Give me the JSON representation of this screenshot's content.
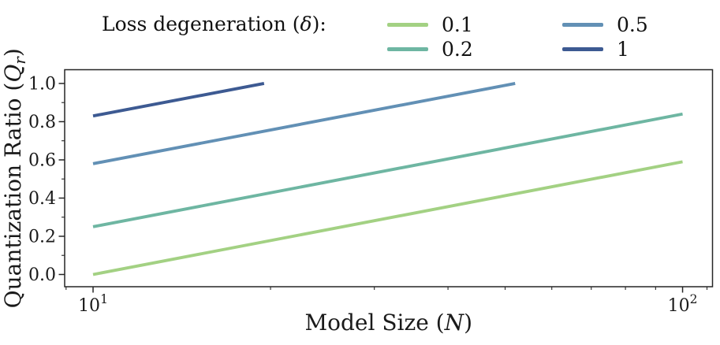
{
  "legend": {
    "title": {
      "pre": "Loss degeneration (",
      "math": "δ",
      "post": "):"
    },
    "entries": [
      {
        "label": "0.1",
        "color": "#a3d183"
      },
      {
        "label": "0.2",
        "color": "#6eb6a2"
      },
      {
        "label": "0.5",
        "color": "#6290b5"
      },
      {
        "label": "1",
        "color": "#3d5a92"
      }
    ],
    "position": "top",
    "columns": 2
  },
  "chart_data": {
    "type": "line",
    "title": "",
    "x_scale": "log",
    "y_scale": "linear",
    "grid": false,
    "frame": "box",
    "frame_color": "#262626",
    "xlabel": {
      "pre": "Model Size (",
      "math": "N",
      "post": ")"
    },
    "ylabel": {
      "pre": "Quantization Ratio (",
      "math": "Q",
      "sub": "r",
      "post": ")"
    },
    "xlim": [
      8.95,
      112.4
    ],
    "ylim": [
      -0.064,
      1.072
    ],
    "x_major_ticks": [
      {
        "value": 10,
        "base": "10",
        "exp": "1"
      },
      {
        "value": 100,
        "base": "10",
        "exp": "2"
      }
    ],
    "x_minor_ticks": [
      9,
      20,
      30,
      40,
      50,
      60,
      70,
      80,
      90,
      110
    ],
    "y_major_ticks": [
      {
        "value": 0.0,
        "label": "0.0"
      },
      {
        "value": 0.2,
        "label": "0.2"
      },
      {
        "value": 0.4,
        "label": "0.4"
      },
      {
        "value": 0.6,
        "label": "0.6"
      },
      {
        "value": 0.8,
        "label": "0.8"
      },
      {
        "value": 1.0,
        "label": "1.0"
      }
    ],
    "y_minor_ticks": [
      0.1,
      0.3,
      0.5,
      0.7,
      0.9
    ],
    "series": [
      {
        "name": "0.1",
        "delta": 0.1,
        "color": "#a3d183",
        "x": [
          10,
          100
        ],
        "y": [
          0.0,
          0.59
        ]
      },
      {
        "name": "0.2",
        "delta": 0.2,
        "color": "#6eb6a2",
        "x": [
          10,
          100
        ],
        "y": [
          0.25,
          0.84
        ]
      },
      {
        "name": "0.5",
        "delta": 0.5,
        "color": "#6290b5",
        "x": [
          10,
          52
        ],
        "y": [
          0.58,
          1.0
        ]
      },
      {
        "name": "1",
        "delta": 1.0,
        "color": "#3d5a92",
        "x": [
          10,
          19.5
        ],
        "y": [
          0.83,
          1.0
        ]
      }
    ]
  }
}
